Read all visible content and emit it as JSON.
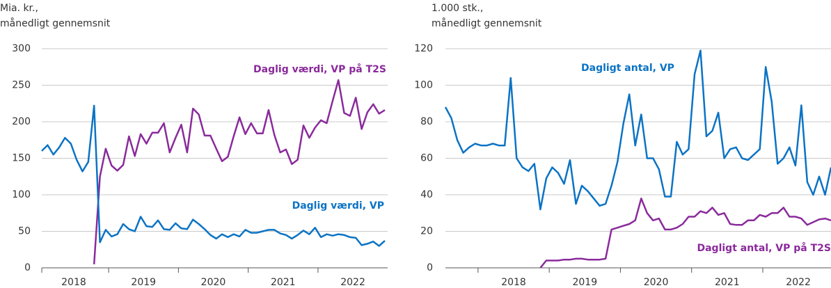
{
  "chart_data": [
    {
      "type": "line",
      "ylabel": [
        "Mia. kr.,",
        "månedligt gennemsnit"
      ],
      "categories": [
        null,
        null,
        null,
        null,
        null,
        null,
        null,
        null,
        null,
        null,
        null,
        null,
        null,
        null,
        null,
        null,
        null,
        null,
        null,
        null,
        null,
        null,
        null,
        null,
        null,
        null,
        null,
        null,
        null,
        null,
        null,
        null,
        null,
        null,
        null,
        null,
        null,
        null,
        null,
        null,
        null,
        null,
        null,
        null,
        null,
        null,
        null,
        null,
        null,
        null,
        null,
        null,
        null,
        null,
        null,
        null,
        null,
        null,
        null,
        null
      ],
      "year_labels": [
        "2018",
        "2019",
        "2020",
        "2021",
        "2022"
      ],
      "ylim": [
        0,
        300
      ],
      "yticks": [
        0,
        50,
        100,
        150,
        200,
        250,
        300
      ],
      "grid": true,
      "series": [
        {
          "name": "Daglig værdi, VP på T2S",
          "color": "#8a2a9b",
          "values": [
            null,
            null,
            null,
            null,
            null,
            null,
            null,
            null,
            null,
            5,
            125,
            163,
            140,
            133,
            141,
            180,
            153,
            183,
            170,
            185,
            185,
            198,
            158,
            178,
            196,
            158,
            218,
            210,
            181,
            181,
            163,
            146,
            152,
            180,
            206,
            183,
            198,
            184,
            184,
            216,
            182,
            158,
            162,
            142,
            148,
            195,
            178,
            192,
            202,
            198,
            228,
            257,
            212,
            208,
            233,
            190,
            213,
            224,
            211,
            216
          ]
        },
        {
          "name": "Daglig værdi, VP",
          "color": "#0b73c4",
          "values": [
            160,
            168,
            155,
            165,
            178,
            170,
            148,
            132,
            145,
            222,
            35,
            52,
            43,
            46,
            60,
            53,
            50,
            70,
            57,
            56,
            65,
            53,
            52,
            61,
            54,
            53,
            66,
            60,
            53,
            45,
            40,
            46,
            42,
            46,
            43,
            52,
            48,
            48,
            50,
            52,
            52,
            47,
            45,
            40,
            45,
            51,
            46,
            55,
            42,
            46,
            44,
            46,
            45,
            42,
            41,
            31,
            33,
            36,
            30,
            37
          ]
        }
      ]
    },
    {
      "type": "line",
      "ylabel": [
        "1.000 stk.,",
        "månedligt gennemsnit"
      ],
      "categories": [
        null,
        null,
        null,
        null,
        null,
        null,
        null,
        null,
        null,
        null,
        null,
        null,
        null,
        null,
        null,
        null,
        null,
        null,
        null,
        null,
        null,
        null,
        null,
        null,
        null,
        null,
        null,
        null,
        null,
        null,
        null,
        null,
        null,
        null,
        null,
        null,
        null,
        null,
        null,
        null,
        null,
        null,
        null,
        null,
        null,
        null,
        null,
        null,
        null,
        null,
        null,
        null,
        null,
        null,
        null,
        null,
        null,
        null,
        null,
        null,
        null,
        null,
        null,
        null,
        null,
        null
      ],
      "year_labels": [
        "2018",
        "2019",
        "2020",
        "2021",
        "2022"
      ],
      "ylim": [
        0,
        120
      ],
      "yticks": [
        0,
        20,
        40,
        60,
        80,
        100,
        120
      ],
      "grid": true,
      "series": [
        {
          "name": "Dagligt antal, VP",
          "color": "#0b73c4",
          "values": [
            88,
            82,
            70,
            63,
            66,
            68,
            67,
            67,
            68,
            67,
            67,
            104,
            60,
            55,
            53,
            57,
            32,
            49,
            55,
            52,
            46,
            59,
            35,
            45,
            42,
            38,
            34,
            35,
            45,
            58,
            79,
            95,
            67,
            84,
            60,
            60,
            54,
            39,
            39,
            69,
            62,
            65,
            106,
            119,
            72,
            75,
            85,
            60,
            65,
            66,
            60,
            59,
            62,
            65,
            110,
            91,
            57,
            60,
            66,
            56,
            89,
            47,
            40,
            50,
            40,
            55
          ]
        },
        {
          "name": "Dagligt antal, VP på T2S",
          "color": "#8a2a9b",
          "values": [
            null,
            null,
            null,
            null,
            null,
            null,
            null,
            null,
            null,
            null,
            null,
            null,
            null,
            null,
            null,
            null,
            0,
            4,
            4,
            4,
            4.5,
            4.5,
            5,
            5,
            4.5,
            4.5,
            4.5,
            5,
            21,
            22,
            23,
            24,
            26,
            38,
            30,
            26,
            27,
            21,
            21,
            22,
            24,
            28,
            28,
            31,
            30,
            33,
            29,
            30,
            24,
            23.5,
            23.5,
            26,
            26,
            29,
            28,
            30,
            30,
            33,
            28,
            28,
            27,
            23.5,
            25,
            26.5,
            27,
            26
          ]
        }
      ]
    }
  ]
}
